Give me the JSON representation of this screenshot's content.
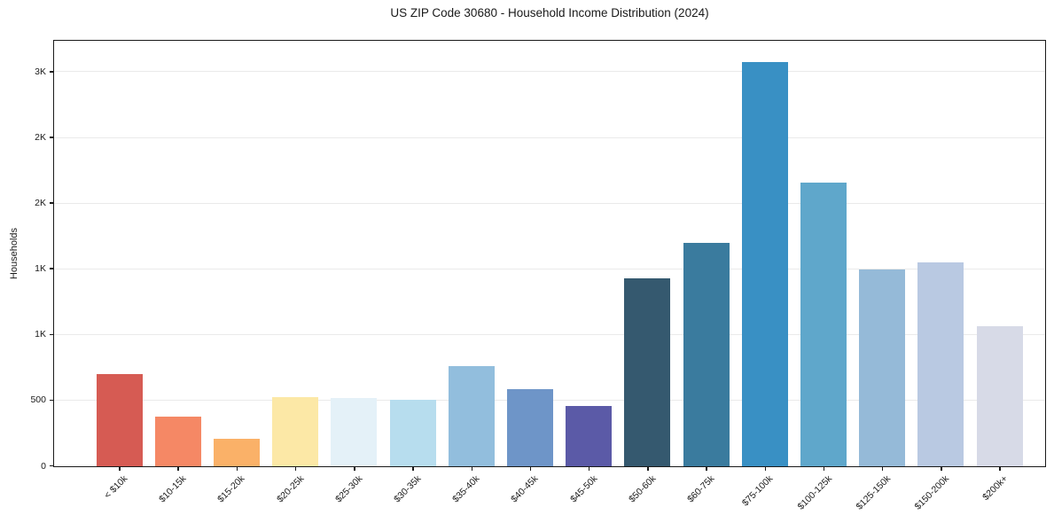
{
  "chart_data": {
    "type": "bar",
    "title": "US ZIP Code 30680 - Household Income Distribution (2024)",
    "ylabel": "Households",
    "xlabel": "",
    "categories": [
      "< $10k",
      "$10-15k",
      "$15-20k",
      "$20-25k",
      "$25-30k",
      "$30-35k",
      "$35-40k",
      "$40-45k",
      "$45-50k",
      "$50-60k",
      "$60-75k",
      "$75-100k",
      "$100-125k",
      "$125-150k",
      "$150-200k",
      "$200k+"
    ],
    "values": [
      705,
      380,
      210,
      530,
      520,
      505,
      765,
      585,
      460,
      1430,
      1700,
      3080,
      2160,
      1500,
      1555,
      1065
    ],
    "bar_colors": [
      "#d65b53",
      "#f58865",
      "#fab168",
      "#fce8a6",
      "#e4f1f8",
      "#b7ddee",
      "#92bedd",
      "#6e95c8",
      "#5b5aa7",
      "#35596f",
      "#3a7b9e",
      "#3990c4",
      "#5fa7cb",
      "#95bad8",
      "#b9c9e2",
      "#d7dae7"
    ],
    "ylim": [
      0,
      3232
    ],
    "yticks": [
      {
        "value": 0,
        "label": "0"
      },
      {
        "value": 500,
        "label": "500"
      },
      {
        "value": 1000,
        "label": "1K"
      },
      {
        "value": 1500,
        "label": "1K"
      },
      {
        "value": 2000,
        "label": "2K"
      },
      {
        "value": 2500,
        "label": "2K"
      },
      {
        "value": 3000,
        "label": "3K"
      }
    ],
    "grid": "horizontal",
    "legend": "none",
    "colors": {
      "background": "#ffffff",
      "gridline": "#eaeaea",
      "spine": "#1a1a1a",
      "text": "#1a1a1a"
    }
  }
}
